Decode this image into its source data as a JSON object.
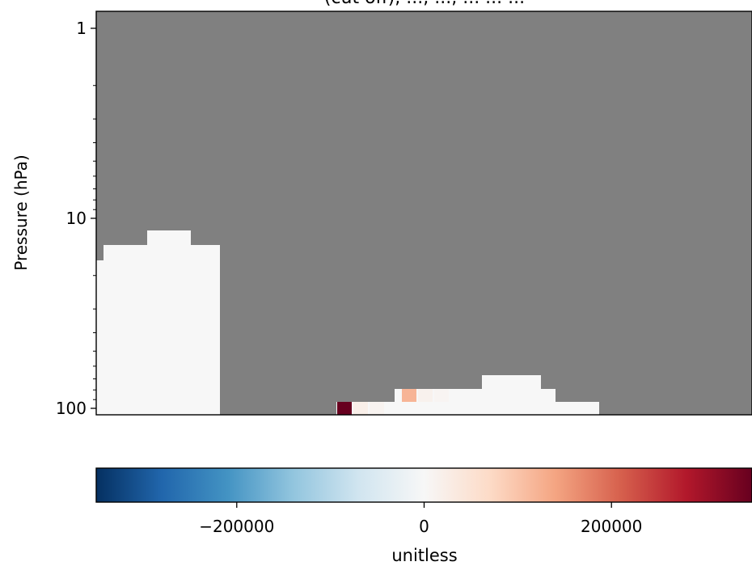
{
  "chart_data": {
    "type": "heatmap",
    "title": "(cut off), ..., ..., ... ... ...",
    "ylabel": "Pressure (hPa)",
    "y_scale": "log",
    "ylim": [
      105,
      0.85
    ],
    "y_ticks": [
      {
        "value": 1,
        "label": "1"
      },
      {
        "value": 10,
        "label": "10"
      },
      {
        "value": 100,
        "label": "100"
      }
    ],
    "x_ticks_shown": false,
    "missing_color": "#808080",
    "colorbar": {
      "label": "unitless",
      "vmin": -350000,
      "vmax": 350000,
      "ticks": [
        {
          "value": -200000,
          "label": "−200000"
        },
        {
          "value": 0,
          "label": "0"
        },
        {
          "value": 200000,
          "label": "200000"
        }
      ],
      "colormap": "RdBu_r",
      "colormap_stops": [
        "#053061",
        "#2166ac",
        "#4393c3",
        "#92c5de",
        "#d1e5f0",
        "#f7f7f7",
        "#fddbc7",
        "#f4a582",
        "#d6604d",
        "#b2182b",
        "#67001f"
      ]
    },
    "approx_value_near_zero": 0,
    "highlight_cells": [
      {
        "x_col": 298,
        "pressure_hPa": 100,
        "value": 350000
      },
      {
        "x_col": 378,
        "pressure_hPa": 85,
        "value": 120000
      },
      {
        "x_col": 318,
        "pressure_hPa": 100,
        "value": 20000
      },
      {
        "x_col": 338,
        "pressure_hPa": 100,
        "value": 10000
      },
      {
        "x_col": 398,
        "pressure_hPa": 85,
        "value": 15000
      },
      {
        "x_col": 418,
        "pressure_hPa": 85,
        "value": 8000
      }
    ]
  }
}
